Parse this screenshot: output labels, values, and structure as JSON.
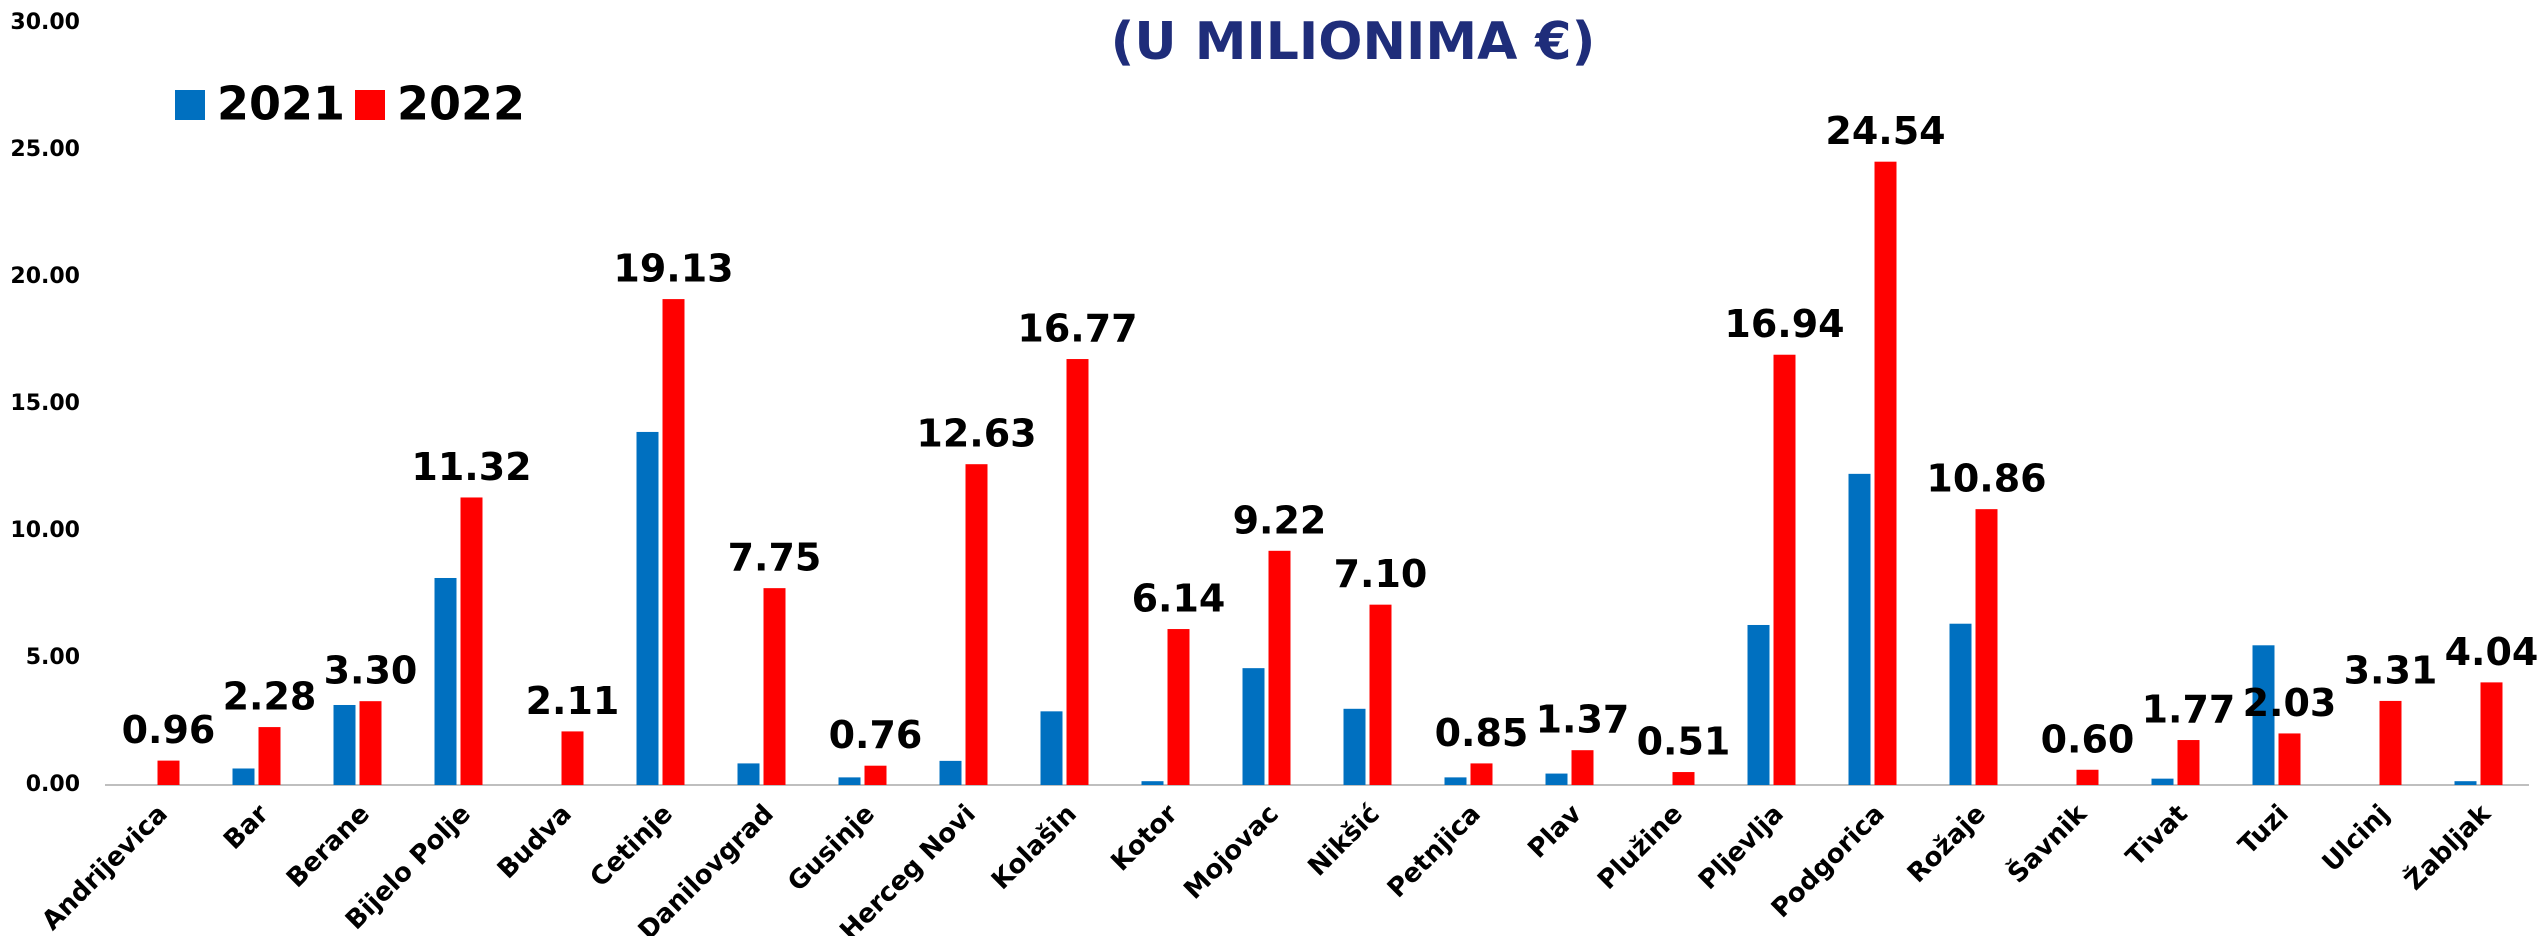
{
  "chart_data": {
    "type": "bar",
    "subtitle": "(U MILIONIMA €)",
    "categories": [
      "Andrijevica",
      "Bar",
      "Berane",
      "Bijelo Polje",
      "Budva",
      "Cetinje",
      "Danilovgrad",
      "Gusinje",
      "Herceg Novi",
      "Kolašin",
      "Kotor",
      "Mojovac",
      "Nikšić",
      "Petnjica",
      "Plav",
      "Plužine",
      "Pljevlja",
      "Podgorica",
      "Rožaje",
      "Šavnik",
      "Tivat",
      "Tuzi",
      "Ulcinj",
      "Žabljak"
    ],
    "series": [
      {
        "name": "2021",
        "color": "#0070c0",
        "values": [
          0,
          0.65,
          3.15,
          8.15,
          0,
          13.9,
          0.85,
          0.3,
          0.95,
          2.9,
          0.15,
          4.6,
          3.0,
          0.3,
          0.45,
          0,
          6.3,
          12.25,
          6.35,
          0,
          0.25,
          5.5,
          0,
          0.15
        ]
      },
      {
        "name": "2022",
        "color": "#ff0000",
        "values": [
          0.96,
          2.28,
          3.3,
          11.32,
          2.11,
          19.13,
          7.75,
          0.76,
          12.63,
          16.77,
          6.14,
          9.22,
          7.1,
          0.85,
          1.37,
          0.51,
          16.94,
          24.54,
          10.86,
          0.6,
          1.77,
          2.03,
          3.31,
          4.04
        ],
        "value_labels": [
          "0.96",
          "2.28",
          "3.30",
          "11.32",
          "2.11",
          "19.13",
          "7.75",
          "0.76",
          "12.63",
          "16.77",
          "6.14",
          "9.22",
          "7.10",
          "0.85",
          "1.37",
          "0.51",
          "16.94",
          "24.54",
          "10.86",
          "0.60",
          "1.77",
          "2.03",
          "3.31",
          "4.04"
        ]
      }
    ],
    "ylim": [
      0,
      30
    ],
    "yticks": [
      {
        "value": 0,
        "label": "0.00"
      },
      {
        "value": 5,
        "label": "5.00"
      },
      {
        "value": 10,
        "label": "10.00"
      },
      {
        "value": 15,
        "label": "15.00"
      },
      {
        "value": 20,
        "label": "20.00"
      },
      {
        "value": 25,
        "label": "25.00"
      },
      {
        "value": 30,
        "label": "30.00"
      }
    ],
    "legend": "upper left"
  }
}
